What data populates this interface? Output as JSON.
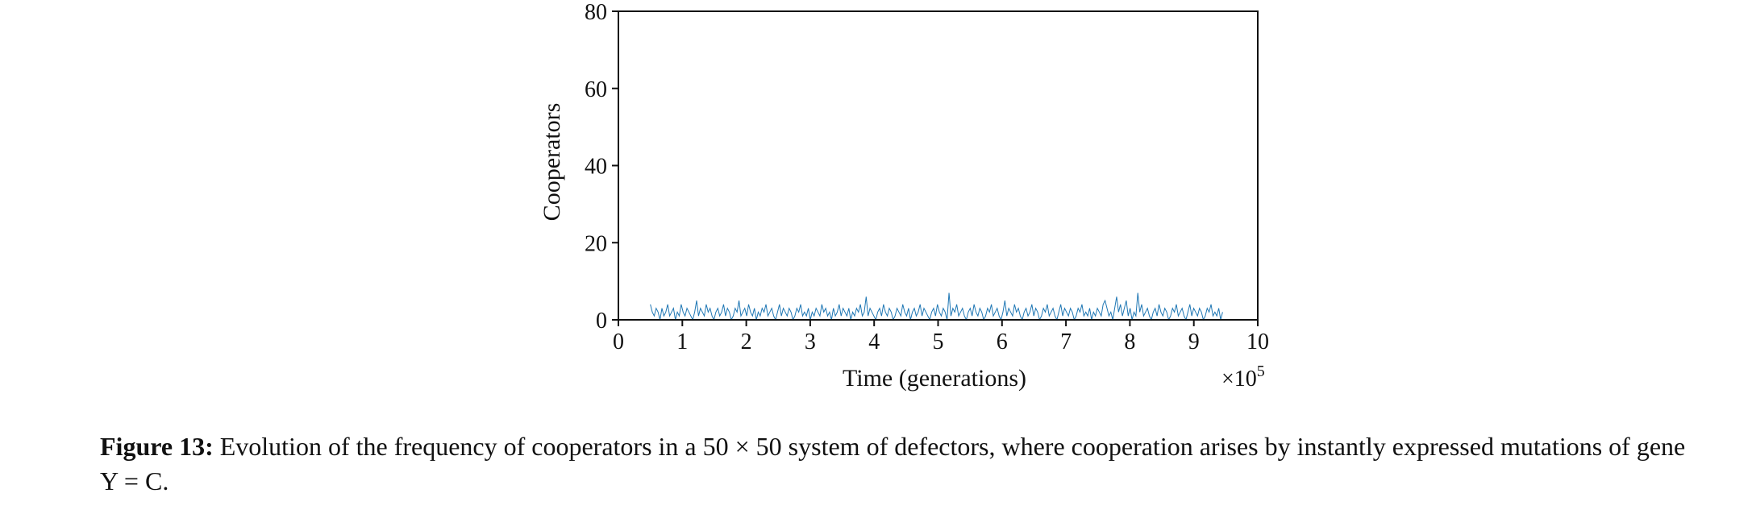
{
  "chart_data": {
    "type": "line",
    "xlabel": "Time (generations)",
    "ylabel": "Cooperators",
    "x_multiplier": "×10",
    "x_multiplier_exponent": "5",
    "xlim": [
      0,
      10
    ],
    "ylim": [
      0,
      80
    ],
    "xticks": [
      "0",
      "1",
      "2",
      "3",
      "4",
      "5",
      "6",
      "7",
      "8",
      "9",
      "10"
    ],
    "yticks": [
      "0",
      "20",
      "40",
      "60",
      "80"
    ],
    "line_color": "#1f77b4",
    "series": [
      {
        "x_start": 0.5,
        "x_end": 9.45,
        "values": [
          4,
          2,
          1,
          3,
          2,
          0,
          3,
          1,
          2,
          4,
          1,
          2,
          3,
          0,
          2,
          1,
          4,
          2,
          1,
          3,
          2,
          1,
          0,
          2,
          5,
          1,
          3,
          2,
          1,
          4,
          2,
          3,
          1,
          0,
          2,
          3,
          1,
          2,
          4,
          1,
          3,
          2,
          0,
          1,
          3,
          2,
          5,
          1,
          2,
          3,
          1,
          4,
          2,
          1,
          3,
          0,
          2,
          1,
          3,
          2,
          4,
          1,
          2,
          3,
          1,
          0,
          2,
          4,
          1,
          3,
          2,
          1,
          3,
          2,
          0,
          1,
          3,
          2,
          4,
          1,
          2,
          1,
          3,
          0,
          2,
          1,
          3,
          2,
          1,
          4,
          2,
          3,
          1,
          2,
          0,
          3,
          1,
          2,
          4,
          1,
          3,
          2,
          1,
          3,
          0,
          2,
          1,
          3,
          2,
          4,
          1,
          2,
          6,
          1,
          3,
          2,
          1,
          0,
          2,
          3,
          1,
          4,
          2,
          1,
          3,
          2,
          0,
          1,
          3,
          2,
          1,
          4,
          2,
          1,
          3,
          0,
          2,
          3,
          1,
          2,
          4,
          1,
          3,
          2,
          1,
          0,
          2,
          3,
          1,
          4,
          2,
          1,
          3,
          2,
          0,
          7,
          1,
          3,
          2,
          4,
          1,
          2,
          3,
          1,
          0,
          2,
          3,
          1,
          4,
          2,
          1,
          3,
          2,
          0,
          1,
          3,
          2,
          4,
          1,
          2,
          3,
          1,
          0,
          2,
          5,
          1,
          3,
          2,
          1,
          4,
          2,
          3,
          1,
          0,
          2,
          3,
          1,
          2,
          4,
          1,
          3,
          2,
          0,
          1,
          3,
          2,
          4,
          1,
          2,
          3,
          1,
          0,
          2,
          4,
          1,
          3,
          2,
          1,
          3,
          2,
          0,
          1,
          3,
          2,
          4,
          1,
          2,
          1,
          3,
          0,
          2,
          1,
          3,
          2,
          1,
          4,
          5,
          3,
          1,
          2,
          0,
          3,
          6,
          2,
          4,
          1,
          3,
          5,
          1,
          3,
          0,
          2,
          1,
          7,
          2,
          4,
          1,
          2,
          3,
          1,
          0,
          2,
          3,
          1,
          4,
          2,
          1,
          3,
          2,
          0,
          1,
          3,
          2,
          4,
          1,
          2,
          3,
          1,
          0,
          2,
          4,
          1,
          3,
          2,
          1,
          3,
          2,
          0,
          1,
          3,
          2,
          4,
          1,
          2,
          1,
          3,
          0,
          2
        ]
      }
    ]
  },
  "caption": {
    "label": "Figure 13:",
    "text": " Evolution of the frequency of cooperators in a 50 × 50 system of defectors, where cooperation arises by instantly expressed mutations of gene Y = C."
  }
}
